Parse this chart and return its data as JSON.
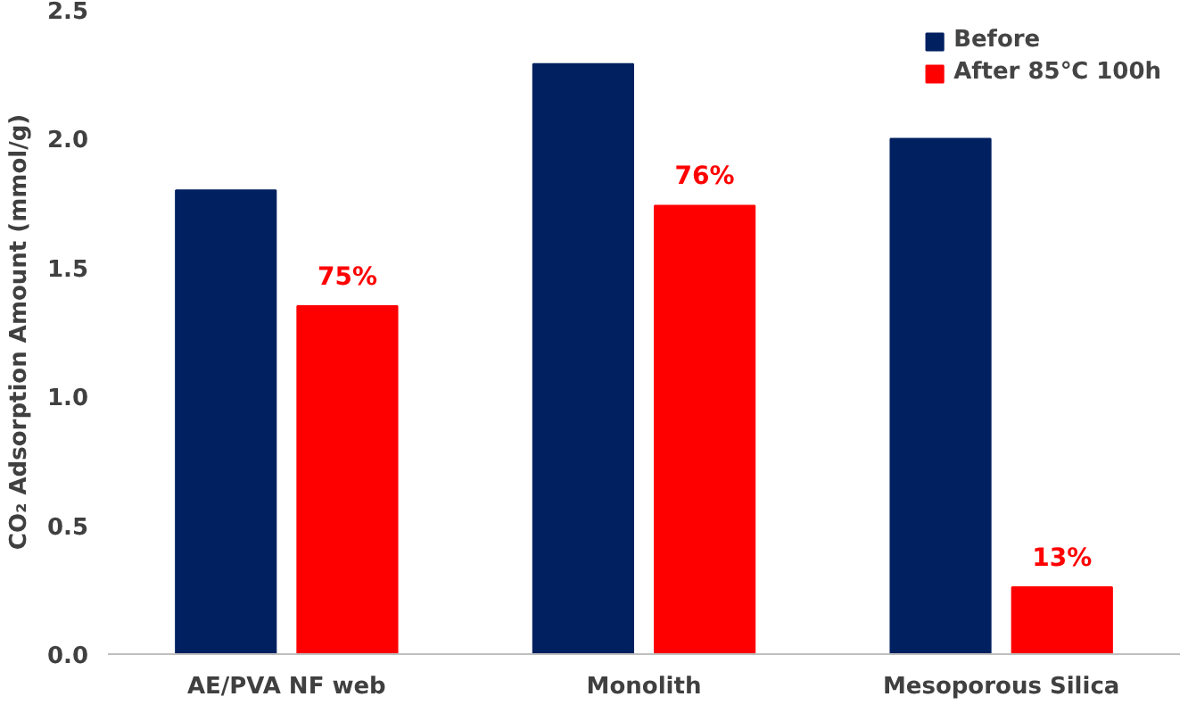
{
  "chart_data": {
    "type": "bar",
    "ylabel": "CO₂ Adsorption Amount (mmol/g)",
    "categories": [
      "AE/PVA NF web",
      "Monolith",
      "Mesoporous Silica"
    ],
    "series": [
      {
        "name": "Before",
        "color": "#002060",
        "values": [
          1.8,
          2.29,
          2.0
        ]
      },
      {
        "name": "After 85℃ 100h",
        "color": "#ff0000",
        "values": [
          1.35,
          1.74,
          0.26
        ]
      }
    ],
    "annotations": [
      "75%",
      "76%",
      "13%"
    ],
    "ylim": [
      0,
      2.5
    ],
    "yticks": [
      {
        "value": 0,
        "label": "0.0"
      },
      {
        "value": 0.5,
        "label": "0.5"
      },
      {
        "value": 1,
        "label": "1.0"
      },
      {
        "value": 1.5,
        "label": "1.5"
      },
      {
        "value": 2,
        "label": "2.0"
      },
      {
        "value": 2.5,
        "label": "2.5"
      }
    ],
    "grid": false,
    "legend": "top right"
  }
}
